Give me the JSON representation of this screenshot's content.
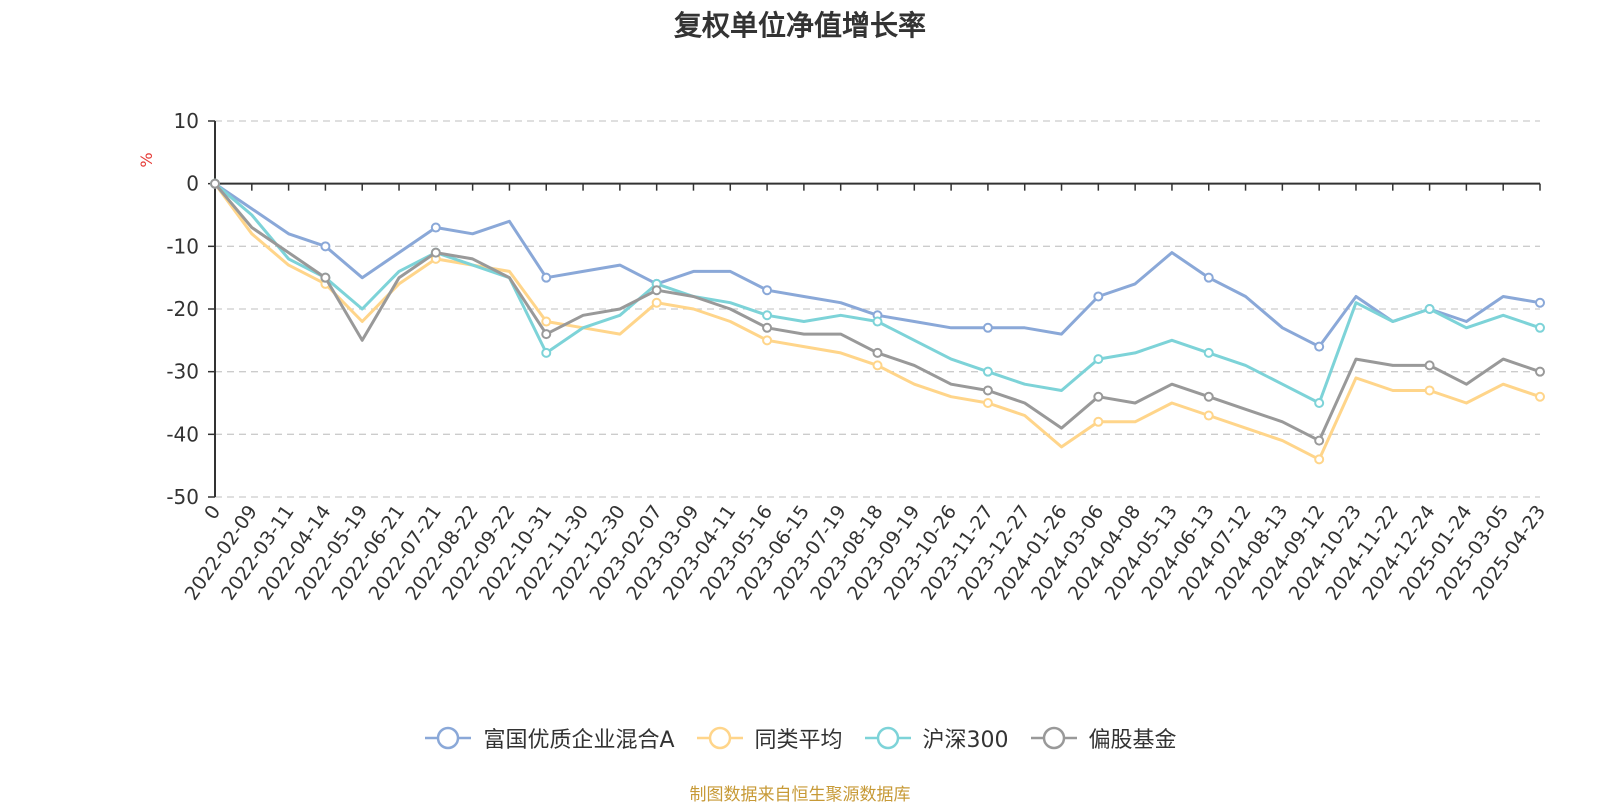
{
  "chart_data": {
    "type": "line",
    "title": "复权单位净值增长率",
    "ylabel": "%",
    "ylim": [
      -50,
      10
    ],
    "yticks": [
      10,
      0,
      -10,
      -20,
      -30,
      -40,
      -50
    ],
    "grid": true,
    "legend_position": "bottom",
    "x": [
      "0",
      "2022-02-09",
      "2022-03-11",
      "2022-04-14",
      "2022-05-19",
      "2022-06-21",
      "2022-07-21",
      "2022-08-22",
      "2022-09-22",
      "2022-10-31",
      "2022-11-30",
      "2022-12-30",
      "2023-02-07",
      "2023-03-09",
      "2023-04-11",
      "2023-05-16",
      "2023-06-15",
      "2023-07-19",
      "2023-08-18",
      "2023-09-19",
      "2023-10-26",
      "2023-11-27",
      "2023-12-27",
      "2024-01-26",
      "2024-03-06",
      "2024-04-08",
      "2024-05-13",
      "2024-06-13",
      "2024-07-12",
      "2024-08-13",
      "2024-09-12",
      "2024-10-23",
      "2024-11-22",
      "2024-12-24",
      "2025-01-24",
      "2025-03-05",
      "2025-04-23"
    ],
    "series": [
      {
        "name": "富国优质企业混合A",
        "color": "#8aa8d8",
        "values": [
          0,
          -4,
          -8,
          -10,
          -15,
          -11,
          -7,
          -8,
          -6,
          -15,
          -14,
          -13,
          -16,
          -14,
          -14,
          -17,
          -18,
          -19,
          -21,
          -22,
          -23,
          -23,
          -23,
          -24,
          -18,
          -16,
          -11,
          -15,
          -18,
          -23,
          -26,
          -18,
          -22,
          -20,
          -22,
          -18,
          -19
        ]
      },
      {
        "name": "同类平均",
        "color": "#ffd58a",
        "values": [
          0,
          -8,
          -13,
          -16,
          -22,
          -16,
          -12,
          -13,
          -14,
          -22,
          -23,
          -24,
          -19,
          -20,
          -22,
          -25,
          -26,
          -27,
          -29,
          -32,
          -34,
          -35,
          -37,
          -42,
          -38,
          -38,
          -35,
          -37,
          -39,
          -41,
          -44,
          -31,
          -33,
          -33,
          -35,
          -32,
          -34
        ]
      },
      {
        "name": "沪深300",
        "color": "#7dd3d8",
        "values": [
          0,
          -5,
          -12,
          -15,
          -20,
          -14,
          -11,
          -13,
          -15,
          -27,
          -23,
          -21,
          -16,
          -18,
          -19,
          -21,
          -22,
          -21,
          -22,
          -25,
          -28,
          -30,
          -32,
          -33,
          -28,
          -27,
          -25,
          -27,
          -29,
          -32,
          -35,
          -19,
          -22,
          -20,
          -23,
          -21,
          -23
        ]
      },
      {
        "name": "偏股基金",
        "color": "#999999",
        "values": [
          0,
          -7,
          -11,
          -15,
          -25,
          -15,
          -11,
          -12,
          -15,
          -24,
          -21,
          -20,
          -17,
          -18,
          -20,
          -23,
          -24,
          -24,
          -27,
          -29,
          -32,
          -33,
          -35,
          -39,
          -34,
          -35,
          -32,
          -34,
          -36,
          -38,
          -41,
          -28,
          -29,
          -29,
          -32,
          -28,
          -30
        ]
      }
    ]
  },
  "source_note": "制图数据来自恒生聚源数据库"
}
